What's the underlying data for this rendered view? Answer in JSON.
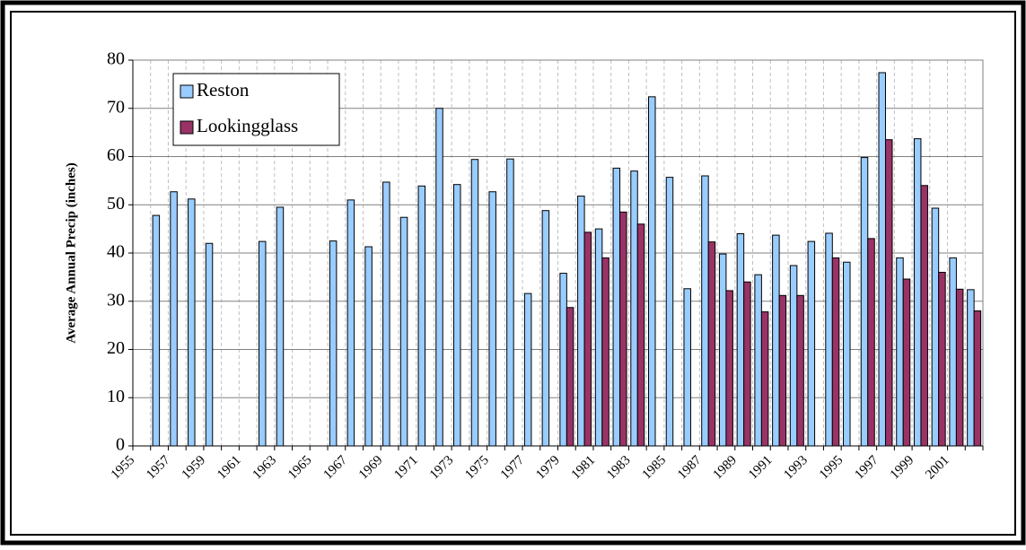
{
  "chart_data": {
    "type": "bar",
    "ylabel": "Average Annual Precip (inches)",
    "categories": [
      "1955",
      null,
      "1957",
      null,
      "1959",
      null,
      "1961",
      null,
      "1963",
      null,
      "1965",
      null,
      "1967",
      null,
      "1969",
      null,
      "1971",
      null,
      "1973",
      null,
      "1975",
      null,
      "1977",
      null,
      "1979",
      null,
      "1981",
      null,
      "1983",
      null,
      "1985",
      null,
      "1987",
      null,
      "1989",
      null,
      "1991",
      null,
      "1993",
      null,
      "1995",
      null,
      "1997",
      null,
      "1999",
      null,
      "2001",
      null
    ],
    "series": [
      {
        "name": "Reston",
        "color": "#99ccff",
        "values": [
          null,
          47.8,
          52.7,
          51.2,
          42,
          null,
          null,
          42.4,
          49.5,
          null,
          null,
          42.5,
          51,
          41.3,
          54.7,
          47.4,
          53.9,
          70,
          54.2,
          59.4,
          52.7,
          59.5,
          31.6,
          48.8,
          35.8,
          51.8,
          45,
          57.6,
          57,
          72.4,
          55.7,
          32.6,
          56,
          39.8,
          44,
          35.5,
          43.7,
          37.4,
          42.4,
          44.1,
          38.1,
          59.8,
          77.4,
          39,
          63.7,
          49.3,
          39,
          32.4
        ]
      },
      {
        "name": "Lookingglass",
        "color": "#993366",
        "values": [
          null,
          null,
          null,
          null,
          null,
          null,
          null,
          null,
          null,
          null,
          null,
          null,
          null,
          null,
          null,
          null,
          null,
          null,
          null,
          null,
          null,
          null,
          null,
          null,
          28.7,
          44.3,
          39,
          48.5,
          46,
          null,
          null,
          null,
          42.3,
          32.2,
          34,
          27.8,
          31.2,
          31.2,
          null,
          39,
          null,
          43,
          63.5,
          34.6,
          54,
          36,
          32.5,
          28
        ]
      }
    ],
    "ylim": [
      0,
      80
    ],
    "yticks": [
      0,
      10,
      20,
      30,
      40,
      50,
      60,
      70,
      80
    ],
    "grid": true,
    "legend": "upper left"
  }
}
